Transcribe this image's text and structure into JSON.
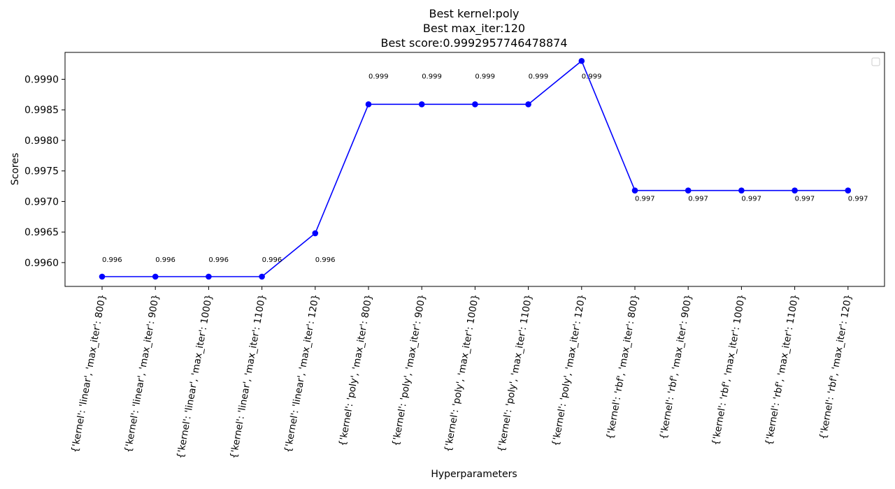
{
  "chart_data": {
    "type": "line",
    "title_lines": [
      "Best kernel:poly",
      "Best max_iter:120",
      "Best score:0.9992957746478874"
    ],
    "xlabel": "Hyperparameters",
    "ylabel": "Scores",
    "categories": [
      "{'kernel': 'linear', 'max_iter': 800}",
      "{'kernel': 'linear', 'max_iter': 900}",
      "{'kernel': 'linear', 'max_iter': 1000}",
      "{'kernel': 'linear', 'max_iter': 1100}",
      "{'kernel': 'linear', 'max_iter': 120}",
      "{'kernel': 'poly', 'max_iter': 800}",
      "{'kernel': 'poly', 'max_iter': 900}",
      "{'kernel': 'poly', 'max_iter': 1000}",
      "{'kernel': 'poly', 'max_iter': 1100}",
      "{'kernel': 'poly', 'max_iter': 120}",
      "{'kernel': 'rbf', 'max_iter': 800}",
      "{'kernel': 'rbf', 'max_iter': 900}",
      "{'kernel': 'rbf', 'max_iter': 1000}",
      "{'kernel': 'rbf', 'max_iter': 1100}",
      "{'kernel': 'rbf', 'max_iter': 120}"
    ],
    "values": [
      0.99577,
      0.99577,
      0.99577,
      0.99577,
      0.99648,
      0.99859,
      0.99859,
      0.99859,
      0.99859,
      0.9993,
      0.99718,
      0.99718,
      0.99718,
      0.99718,
      0.99718
    ],
    "data_labels": [
      "0.996",
      "0.996",
      "0.996",
      "0.996",
      "0.996",
      "0.999",
      "0.999",
      "0.999",
      "0.999",
      "0.999",
      "0.997",
      "0.997",
      "0.997",
      "0.997",
      "0.997"
    ],
    "data_label_y": [
      0.996,
      0.996,
      0.996,
      0.996,
      0.996,
      0.999,
      0.999,
      0.999,
      0.999,
      0.999,
      0.997,
      0.997,
      0.997,
      0.997,
      0.997
    ],
    "yticks": [
      0.996,
      0.9965,
      0.997,
      0.9975,
      0.998,
      0.9985,
      0.999
    ],
    "ytick_labels": [
      "0.9960",
      "0.9965",
      "0.9970",
      "0.9975",
      "0.9980",
      "0.9985",
      "0.9990"
    ],
    "ylim": [
      0.99561,
      0.99944
    ],
    "grid": false,
    "legend": "top-right (empty)",
    "line_color": "#0000ff",
    "marker": "circle"
  }
}
